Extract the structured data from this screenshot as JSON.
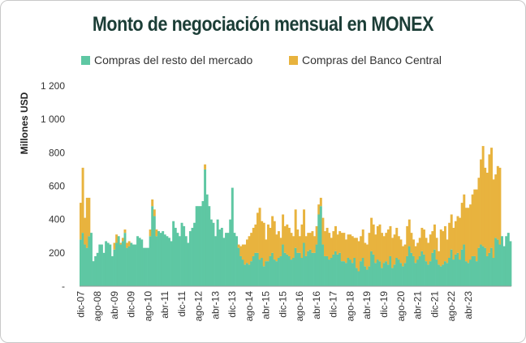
{
  "chart_data": {
    "type": "bar",
    "stacked": true,
    "title": "Monto de negociación mensual en MONEX",
    "ylabel": "Millones USD",
    "xlabel": "",
    "ylim": [
      0,
      1200
    ],
    "yticks": [
      0,
      200,
      400,
      600,
      800,
      1000,
      1200
    ],
    "ytick_labels": [
      "-",
      "200",
      "400",
      "600",
      "800",
      "1 000",
      "1 200"
    ],
    "x_tick_labels": [
      "dic-07",
      "ago-08",
      "abr-09",
      "dic-09",
      "ago-10",
      "abr-11",
      "dic-11",
      "ago-12",
      "abr-13",
      "dic-13",
      "ago-14",
      "abr-15",
      "dic-15",
      "ago-16",
      "abr-16",
      "dic-17",
      "ago-18",
      "abr-19",
      "dic-19",
      "ago-20",
      "abr-21",
      "dic-21",
      "ago-22",
      "abr-23"
    ],
    "x_tick_labels_note": "as printed",
    "legend_position": "top",
    "series": [
      {
        "name": "Compras del resto del mercado",
        "color": "#5ec7a3",
        "values": [
          280,
          320,
          250,
          230,
          300,
          320,
          150,
          180,
          200,
          250,
          250,
          200,
          270,
          260,
          250,
          180,
          220,
          260,
          300,
          250,
          270,
          320,
          230,
          240,
          260,
          250,
          250,
          300,
          290,
          280,
          230,
          230,
          230,
          300,
          480,
          420,
          300,
          330,
          320,
          330,
          310,
          300,
          290,
          270,
          390,
          350,
          320,
          300,
          380,
          360,
          300,
          260,
          330,
          350,
          380,
          480,
          480,
          480,
          510,
          700,
          550,
          480,
          400,
          380,
          300,
          400,
          340,
          350,
          290,
          320,
          320,
          400,
          590,
          320,
          300,
          230,
          180,
          160,
          130,
          140,
          130,
          150,
          180,
          200,
          200,
          160,
          170,
          120,
          150,
          150,
          180,
          200,
          160,
          150,
          170,
          180,
          250,
          200,
          190,
          180,
          160,
          170,
          230,
          200,
          200,
          170,
          260,
          180,
          210,
          220,
          200,
          200,
          250,
          430,
          480,
          250,
          180,
          180,
          160,
          170,
          190,
          210,
          190,
          200,
          150,
          150,
          140,
          170,
          160,
          140,
          170,
          110,
          90,
          150,
          170,
          120,
          100,
          120,
          210,
          190,
          140,
          160,
          150,
          110,
          140,
          150,
          130,
          180,
          110,
          130,
          170,
          160,
          140,
          120,
          140,
          180,
          240,
          200,
          180,
          140,
          160,
          180,
          210,
          190,
          150,
          130,
          150,
          200,
          220,
          160,
          130,
          120,
          130,
          150,
          140,
          170,
          220,
          160,
          190,
          200,
          160,
          220,
          250,
          150,
          140,
          160,
          180,
          180,
          150,
          230,
          250,
          240,
          230,
          180,
          200,
          230,
          170,
          290,
          280,
          250,
          300,
          240,
          300,
          320,
          270
        ]
      },
      {
        "name": "Compras del Banco Central",
        "color": "#e8b33e",
        "values": [
          220,
          390,
          160,
          300,
          230,
          0,
          0,
          0,
          0,
          0,
          0,
          0,
          0,
          0,
          0,
          0,
          40,
          50,
          0,
          10,
          20,
          20,
          30,
          30,
          0,
          0,
          0,
          0,
          0,
          0,
          0,
          0,
          0,
          40,
          40,
          40,
          40,
          0,
          0,
          0,
          0,
          0,
          0,
          0,
          0,
          0,
          0,
          0,
          0,
          0,
          0,
          0,
          0,
          0,
          0,
          0,
          0,
          0,
          0,
          30,
          0,
          0,
          0,
          0,
          0,
          0,
          0,
          0,
          0,
          0,
          0,
          0,
          0,
          0,
          0,
          20,
          60,
          90,
          120,
          140,
          170,
          170,
          170,
          170,
          240,
          310,
          220,
          260,
          130,
          220,
          170,
          220,
          230,
          160,
          160,
          110,
          180,
          160,
          180,
          170,
          160,
          130,
          230,
          140,
          100,
          200,
          200,
          120,
          110,
          100,
          130,
          100,
          110,
          60,
          50,
          160,
          150,
          170,
          160,
          120,
          140,
          150,
          120,
          130,
          170,
          170,
          140,
          140,
          150,
          160,
          120,
          180,
          180,
          150,
          170,
          140,
          150,
          200,
          200,
          180,
          170,
          200,
          220,
          210,
          160,
          170,
          210,
          180,
          180,
          180,
          180,
          140,
          140,
          120,
          110,
          180,
          160,
          120,
          100,
          100,
          100,
          110,
          140,
          150,
          140,
          130,
          160,
          130,
          150,
          130,
          80,
          220,
          200,
          210,
          140,
          210,
          210,
          190,
          200,
          220,
          250,
          280,
          300,
          320,
          330,
          330,
          370,
          400,
          430,
          420,
          510,
          600,
          480,
          500,
          590,
          600,
          470,
          380,
          440,
          460
        ]
      }
    ]
  }
}
